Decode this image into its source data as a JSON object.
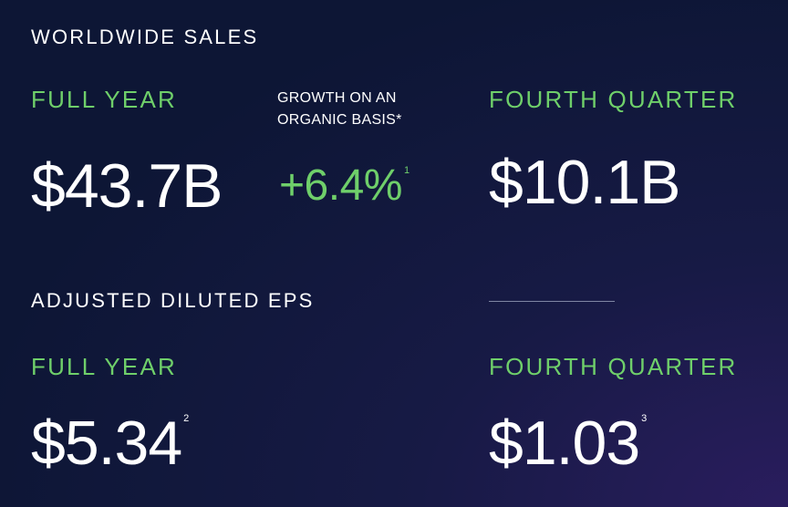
{
  "sales": {
    "title": "WORLDWIDE SALES",
    "full_year_label": "FULL YEAR",
    "full_year_value": "$43.7B",
    "growth_label_line1": "GROWTH ON AN",
    "growth_label_line2": "ORGANIC BASIS*",
    "growth_value": "+6.4%",
    "growth_footnote": "1",
    "fourth_quarter_label": "FOURTH QUARTER",
    "fourth_quarter_value": "$10.1B"
  },
  "eps": {
    "title": "ADJUSTED DILUTED EPS",
    "full_year_label": "FULL YEAR",
    "full_year_value": "$5.34",
    "full_year_footnote": "2",
    "fourth_quarter_label": "FOURTH QUARTER",
    "fourth_quarter_value": "$1.03",
    "fourth_quarter_footnote": "3"
  },
  "colors": {
    "accent_green": "#6fcf6a",
    "background_dark": "#0d1635",
    "background_purple": "#2a1d5e"
  }
}
